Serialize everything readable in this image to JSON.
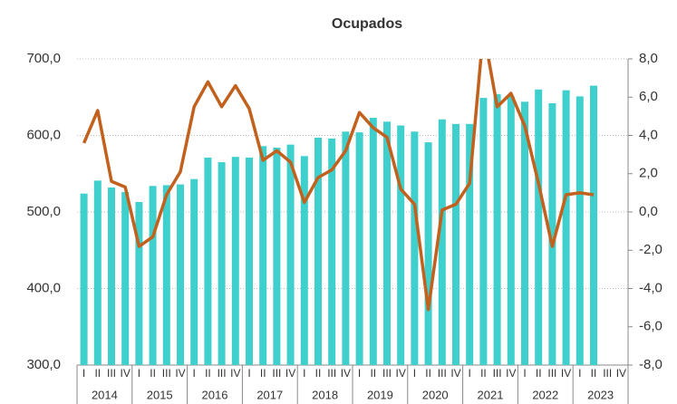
{
  "chart_data": {
    "type": "bar_line",
    "title": "Ocupados",
    "categories": [
      "I",
      "II",
      "III",
      "IV",
      "I",
      "II",
      "III",
      "IV",
      "I",
      "II",
      "III",
      "IV",
      "I",
      "II",
      "III",
      "IV",
      "I",
      "II",
      "III",
      "IV",
      "I",
      "II",
      "III",
      "IV",
      "I",
      "II",
      "III",
      "IV",
      "I",
      "II",
      "III",
      "IV",
      "I",
      "II",
      "III",
      "IV",
      "I",
      "II",
      "III",
      "IV"
    ],
    "years": [
      "2014",
      "2015",
      "2016",
      "2017",
      "2018",
      "2019",
      "2020",
      "2021",
      "2022",
      "2023"
    ],
    "series": [
      {
        "type": "bar",
        "color": "#3fcfcc",
        "axis": "y",
        "values": [
          524,
          541,
          532,
          526,
          513,
          534,
          535,
          536,
          543,
          571,
          565,
          572,
          571,
          586,
          584,
          588,
          573,
          597,
          596,
          605,
          604,
          623,
          618,
          613,
          605,
          591,
          621,
          615,
          615,
          649,
          654,
          651,
          644,
          660,
          642,
          659,
          651,
          665,
          null,
          null
        ]
      },
      {
        "type": "line",
        "color": "#c2611d",
        "axis": "y2",
        "values": [
          3.6,
          5.3,
          1.6,
          1.3,
          -1.8,
          -1.3,
          0.9,
          2.1,
          5.5,
          6.8,
          5.5,
          6.6,
          5.4,
          2.7,
          3.2,
          2.6,
          0.5,
          1.8,
          2.2,
          3.2,
          5.2,
          4.4,
          3.9,
          1.2,
          0.4,
          -5.1,
          0.1,
          0.4,
          1.5,
          9.5,
          5.5,
          6.2,
          4.5,
          1.5,
          -1.8,
          0.9,
          1.0,
          0.9,
          null,
          null
        ]
      }
    ],
    "ylim": [
      300,
      700
    ],
    "yticks": [
      {
        "value": 300,
        "label": "300,0"
      },
      {
        "value": 400,
        "label": "400,0"
      },
      {
        "value": 500,
        "label": "500,0"
      },
      {
        "value": 600,
        "label": "600,0"
      },
      {
        "value": 700,
        "label": "700,0"
      }
    ],
    "y2lim": [
      -8,
      8
    ],
    "y2ticks": [
      {
        "value": -8,
        "label": "-8,0"
      },
      {
        "value": -6,
        "label": "-6,0"
      },
      {
        "value": -4,
        "label": "-4,0"
      },
      {
        "value": -2,
        "label": "-2,0"
      },
      {
        "value": 0,
        "label": "0,0"
      },
      {
        "value": 2,
        "label": "2,0"
      },
      {
        "value": 4,
        "label": "4,0"
      },
      {
        "value": 6,
        "label": "6,0"
      },
      {
        "value": 8,
        "label": "8,0"
      }
    ],
    "grid": true
  }
}
